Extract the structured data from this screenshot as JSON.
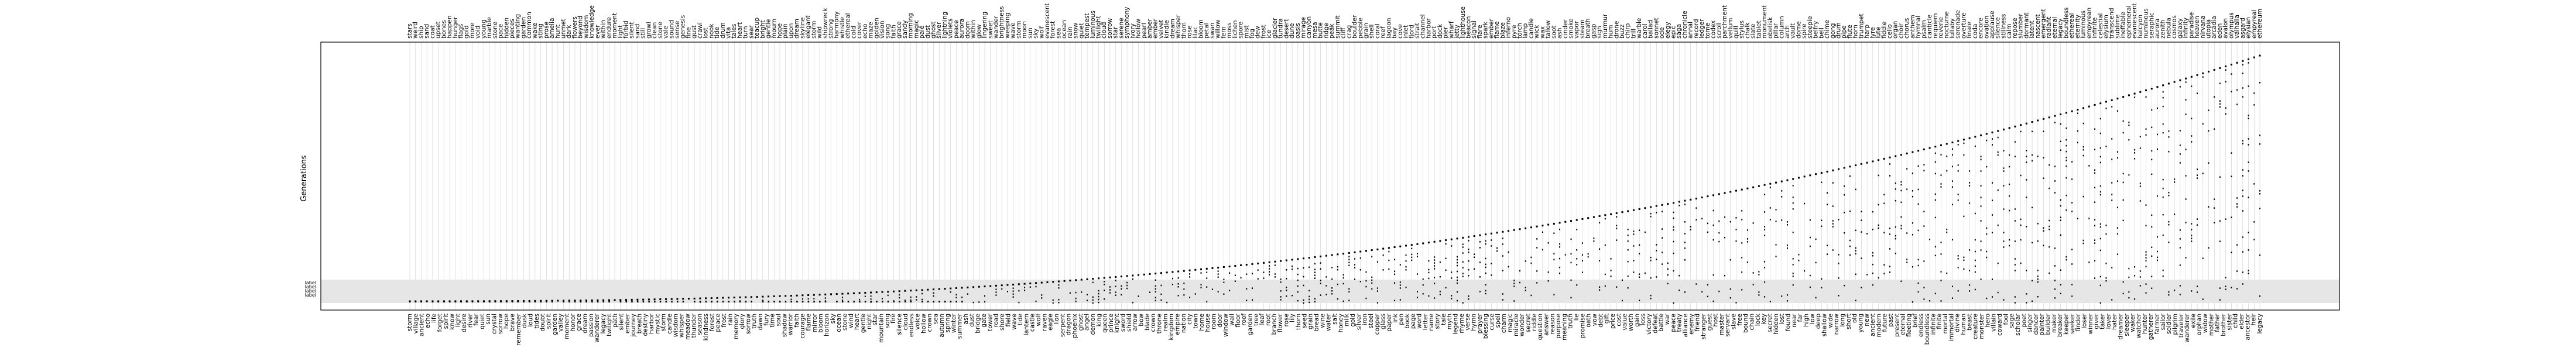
{
  "chart_data": {
    "type": "scatter",
    "ylabel": "Generations",
    "grid": true,
    "legend": "none",
    "colors": {
      "points": "#000000",
      "grid": "#cfcfcf",
      "frame": "#000000",
      "band": "#e6e6e6"
    },
    "bottom_labels": [
      "storm",
      "village",
      "ancient",
      "echo",
      "life",
      "forget",
      "spirit",
      "know",
      "light",
      "desire",
      "river",
      "fear",
      "quiet",
      "sun",
      "crystal",
      "sorrow",
      "hope",
      "brave",
      "remember",
      "dusk",
      "loud",
      "tides",
      "doubt",
      "spirit",
      "garden",
      "valley",
      "moment",
      "honor",
      "grace",
      "dream",
      "passion",
      "wanderer",
      "legacy",
      "twilight",
      "path",
      "silent",
      "ember",
      "journey",
      "breath",
      "destiny",
      "harbor",
      "mystic",
      "storm",
      "candle",
      "wisdom",
      "whisper",
      "meadow",
      "thunder",
      "season",
      "kindness",
      "forest",
      "peace",
      "frost",
      "rain",
      "memory",
      "glory",
      "sorrow",
      "truth",
      "dawn",
      "fury",
      "time",
      "soul",
      "shadow",
      "warrior",
      "faith",
      "courage",
      "flame",
      "mirror",
      "bloom",
      "horizon",
      "sky",
      "ocean",
      "stone",
      "wind",
      "heart",
      "gentle",
      "night",
      "star",
      "mountain",
      "song",
      "fire",
      "silence",
      "cloud",
      "endless",
      "voice",
      "hollow",
      "crown",
      "sea",
      "autumn",
      "spring",
      "winter",
      "summer",
      "ash",
      "dust",
      "bridge",
      "gate",
      "tower",
      "road",
      "shore",
      "field",
      "wave",
      "tide",
      "lantern",
      "castle",
      "wolf",
      "raven",
      "eagle",
      "lion",
      "serpent",
      "dragon",
      "phoenix",
      "ghost",
      "angel",
      "demon",
      "king",
      "queen",
      "prince",
      "knight",
      "sword",
      "shield",
      "arrow",
      "bow",
      "blade",
      "crown",
      "throne",
      "realm",
      "kingdom",
      "empire",
      "nation",
      "city",
      "town",
      "home",
      "house",
      "room",
      "door",
      "window",
      "wall",
      "floor",
      "roof",
      "garden",
      "tree",
      "leaf",
      "root",
      "branch",
      "flower",
      "rose",
      "lily",
      "thorn",
      "seed",
      "grain",
      "bread",
      "wine",
      "water",
      "salt",
      "honey",
      "milk",
      "gold",
      "silver",
      "iron",
      "steel",
      "copper",
      "glass",
      "paper",
      "ink",
      "pen",
      "book",
      "page",
      "word",
      "letter",
      "name",
      "story",
      "tale",
      "myth",
      "legend",
      "rhyme",
      "verse",
      "hymn",
      "prayer",
      "blessing",
      "curse",
      "spell",
      "charm",
      "magic",
      "miracle",
      "wonder",
      "secret",
      "riddle",
      "question",
      "answer",
      "reason",
      "purpose",
      "meaning",
      "truth",
      "lie",
      "promise",
      "oath",
      "vow",
      "debt",
      "gift",
      "price",
      "cost",
      "value",
      "worth",
      "gain",
      "loss",
      "victory",
      "defeat",
      "battle",
      "war",
      "peace",
      "treaty",
      "alliance",
      "enemy",
      "friend",
      "stranger",
      "guest",
      "host",
      "master",
      "servant",
      "slave",
      "free",
      "bound",
      "chain",
      "lock",
      "key",
      "secret",
      "hidden",
      "lost",
      "found",
      "near",
      "far",
      "high",
      "low",
      "deep",
      "shallow",
      "wide",
      "narrow",
      "long",
      "short",
      "old",
      "young",
      "new",
      "ancient",
      "modern",
      "future",
      "past",
      "present",
      "eternal",
      "fleeting",
      "brief",
      "endless",
      "boundless",
      "infinite",
      "finite",
      "mortal",
      "immortal",
      "divine",
      "human",
      "beast",
      "creature",
      "monster",
      "hero",
      "villain",
      "coward",
      "fool",
      "sage",
      "scholar",
      "poet",
      "singer",
      "dancer",
      "painter",
      "builder",
      "maker",
      "breaker",
      "keeper",
      "seeker",
      "finder",
      "loser",
      "winner",
      "giver",
      "taker",
      "lover",
      "hater",
      "dreamer",
      "sleeper",
      "waker",
      "watcher",
      "hunter",
      "gatherer",
      "farmer",
      "sailor",
      "soldier",
      "pilgrim",
      "traveler",
      "wanderer",
      "exile",
      "orphan",
      "widow",
      "mother",
      "father",
      "brother",
      "sister",
      "child",
      "elder",
      "ancestor",
      "heir",
      "legacy"
    ],
    "top_labels": [
      "stars",
      "weird",
      "ship",
      "sand",
      "coat",
      "upset",
      "bones",
      "happen",
      "hunger",
      "flags",
      "gold",
      "more",
      "void",
      "young",
      "marble",
      "stone",
      "pace",
      "hidden",
      "pieces",
      "wanting",
      "garden",
      "common",
      "wake",
      "sting",
      "prose",
      "amelia",
      "hunt",
      "unmet",
      "dark",
      "flowers",
      "beyond",
      "wisdom",
      "knowledge",
      "ever",
      "within",
      "endure",
      "moment",
      "light",
      "forbid",
      "silent",
      "sand",
      "still",
      "growl",
      "clean",
      "stone",
      "vale",
      "sound",
      "sense",
      "genesis",
      "fine",
      "gust",
      "crawl",
      "lost",
      "nook",
      "tide",
      "drum",
      "vita",
      "tales",
      "heart",
      "turn",
      "sear",
      "teacup",
      "bright",
      "gentle",
      "mourn",
      "hope",
      "plain",
      "upon",
      "dream",
      "skyline",
      "elegant",
      "storm",
      "wild",
      "shipwreck",
      "strong",
      "harmony",
      "whistle",
      "ethereal",
      "cold",
      "cover",
      "echo",
      "maze",
      "golden",
      "vision",
      "song",
      "faith",
      "grace",
      "sandy",
      "morning",
      "magic",
      "pale",
      "dust",
      "ghost",
      "silver",
      "lightning",
      "violets",
      "peace",
      "aurora",
      "doom",
      "within",
      "glow",
      "lingering",
      "sweet",
      "wander",
      "brightness",
      "weeping",
      "wave",
      "storm",
      "moon",
      "sun",
      "sky",
      "wolf",
      "evanescent",
      "forest",
      "sea",
      "ocean",
      "rain",
      "snow",
      "quiet",
      "tempest",
      "luminous",
      "twilight",
      "cloud",
      "sorrow",
      "star",
      "serene",
      "symphony",
      "ivory",
      "hollow",
      "pearl",
      "amber",
      "ember",
      "velvet",
      "kindle",
      "dream",
      "whisper",
      "thorn",
      "rose",
      "lilac",
      "bloom",
      "petal",
      "swan",
      "willow",
      "fern",
      "moss",
      "lichen",
      "spore",
      "mist",
      "fog",
      "dew",
      "frost",
      "ice",
      "glacier",
      "tundra",
      "desert",
      "dune",
      "oasis",
      "mirage",
      "canyon",
      "mesa",
      "butte",
      "ridge",
      "peak",
      "summit",
      "cliff",
      "crag",
      "boulder",
      "pebble",
      "grain",
      "shell",
      "coral",
      "reef",
      "lagoon",
      "bay",
      "cove",
      "inlet",
      "fjord",
      "strait",
      "channel",
      "harbor",
      "port",
      "dock",
      "pier",
      "wharf",
      "jetty",
      "lighthouse",
      "beacon",
      "signal",
      "flare",
      "spark",
      "ember",
      "flame",
      "blaze",
      "inferno",
      "pyre",
      "torch",
      "lamp",
      "candle",
      "wick",
      "wax",
      "tallow",
      "soot",
      "ash",
      "cinder",
      "smoke",
      "vapor",
      "steam",
      "breath",
      "gasp",
      "sigh",
      "murmur",
      "hum",
      "drone",
      "buzz",
      "chirp",
      "trill",
      "warble",
      "carol",
      "ballad",
      "sonnet",
      "ode",
      "elegy",
      "epic",
      "saga",
      "chronicle",
      "annal",
      "record",
      "ledger",
      "tome",
      "codex",
      "scroll",
      "parchment",
      "vellum",
      "quill",
      "stylus",
      "chalk",
      "slate",
      "tablet",
      "monument",
      "obelisk",
      "pillar",
      "column",
      "arch",
      "vault",
      "dome",
      "spire",
      "steeple",
      "belfry",
      "bell",
      "chime",
      "gong",
      "drum",
      "pipe",
      "flute",
      "horn",
      "trumpet",
      "harp",
      "lyre",
      "lute",
      "fiddle",
      "cello",
      "organ",
      "choir",
      "chorus",
      "anthem",
      "hymnal",
      "psalm",
      "canticle",
      "requiem",
      "reverie",
      "nocturne",
      "lullaby",
      "serenade",
      "overture",
      "finale",
      "coda",
      "encore",
      "ovation",
      "applause",
      "silence",
      "stillness",
      "calm",
      "repose",
      "slumber",
      "dormant",
      "latent",
      "nascent",
      "emergent",
      "radiant",
      "eternal",
      "legacy",
      "boundless",
      "ethereal",
      "eternity",
      "luminous",
      "empyrean",
      "infinite",
      "celestial",
      "elysium",
      "transcend",
      "sublime",
      "ineffable",
      "ephemeral",
      "evanescent",
      "halcyon",
      "numinous",
      "seraphic",
      "aurora",
      "zenith",
      "nebula",
      "cosmos",
      "galaxy",
      "infinity",
      "paradise",
      "heaven",
      "nirvana",
      "utopia",
      "arcadia",
      "eden",
      "avalon",
      "olympus",
      "valhalla",
      "asgard",
      "elysian",
      "empyreal",
      "ethereum"
    ],
    "counts": 300,
    "y_range": [
      0,
      1
    ]
  }
}
